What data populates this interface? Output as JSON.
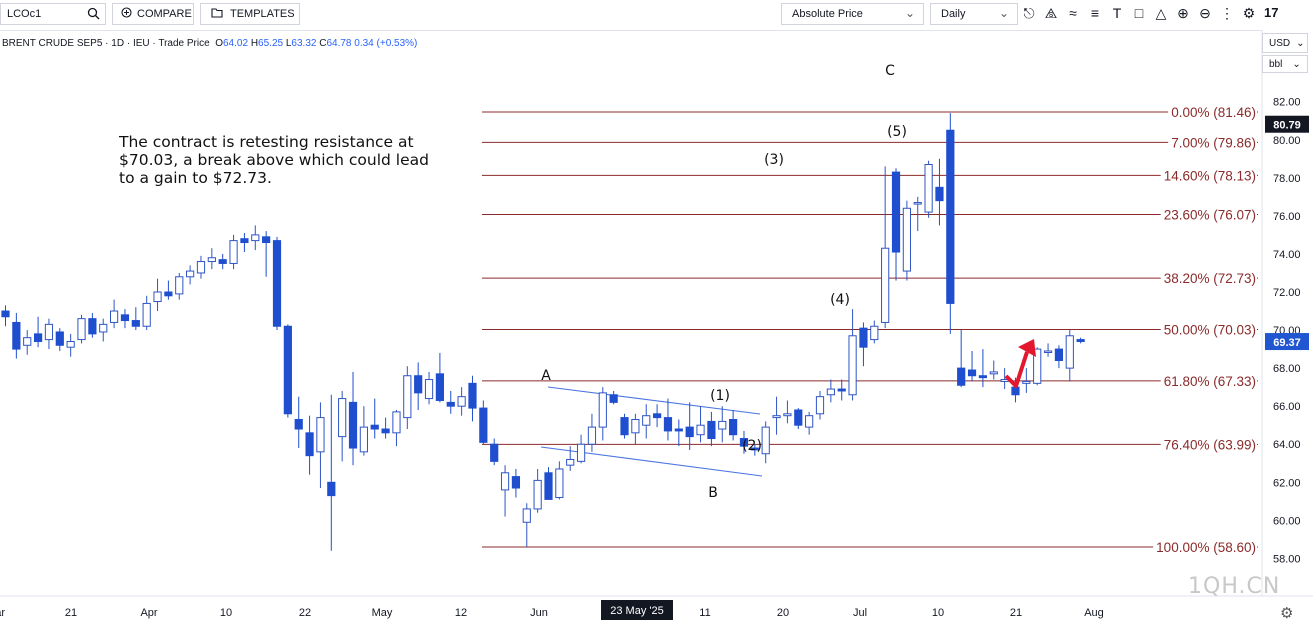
{
  "toolbar": {
    "symbol": "LCOc1",
    "compare_label": "COMPARE",
    "templates_label": "TEMPLATES",
    "price_mode": "Absolute Price",
    "interval": "Daily",
    "tool_icons": [
      "candles-icon",
      "indicators-icon",
      "studies-icon",
      "draw-line-icon",
      "text-icon",
      "zoom-box-icon",
      "shape-icon",
      "zoom-in-icon",
      "zoom-out-icon",
      "more-icon",
      "settings-icon",
      "tv-logo-icon"
    ]
  },
  "legend": {
    "instrument": "BRENT CRUDE SEP5 · 1D · IEU · Trade Price",
    "o_label": "O",
    "open": "64.02",
    "h_label": "H",
    "high": "65.25",
    "l_label": "L",
    "low": "63.32",
    "c_label": "C",
    "close": "64.78",
    "change": "0.34 (+0.53%)"
  },
  "currency": "USD",
  "unit": "bbl",
  "annotation": "The contract is retesting resistance at $70.03, a break above which could lead to a gain to $72.73.",
  "watermark": "1QH.CN",
  "colors": {
    "up_fill": "#ffffff",
    "up_border": "#2f55c4",
    "down": "#1f4fcf",
    "fib": "#8b2a2a",
    "trend": "#4a74e0",
    "arrow": "#e3172e",
    "badge_dark": "#131722",
    "badge_blue": "#2156d1"
  },
  "chart_data": {
    "type": "candlestick",
    "price_axis": {
      "min": 57.8,
      "max": 83.0,
      "ticks": [
        58,
        60,
        62,
        64,
        66,
        68,
        70,
        72,
        74,
        76,
        78,
        80,
        82
      ]
    },
    "price_labels": {
      "top": "80.79",
      "last": "69.37"
    },
    "time_axis": {
      "labels": [
        "Mar",
        "21",
        "Apr",
        "10",
        "22",
        "May",
        "12",
        "Jun",
        "11",
        "20",
        "Jul",
        "10",
        "21",
        "Aug"
      ],
      "crosshair_label": "23 May '25"
    },
    "fibonacci": [
      {
        "ratio": "0.00%",
        "price": 81.46
      },
      {
        "ratio": "7.00%",
        "price": 79.86
      },
      {
        "ratio": "14.60%",
        "price": 78.13
      },
      {
        "ratio": "23.60%",
        "price": 76.07
      },
      {
        "ratio": "38.20%",
        "price": 72.73
      },
      {
        "ratio": "50.00%",
        "price": 70.03
      },
      {
        "ratio": "61.80%",
        "price": 67.33
      },
      {
        "ratio": "76.40%",
        "price": 63.99
      },
      {
        "ratio": "100.00%",
        "price": 58.6
      }
    ],
    "wave_labels": [
      "A",
      "B",
      "C",
      "(1)",
      "(2)",
      "(3)",
      "(4)",
      "(5)"
    ],
    "candles": [
      {
        "o": 71.0,
        "h": 71.3,
        "l": 70.2,
        "c": 70.7
      },
      {
        "o": 70.4,
        "h": 70.9,
        "l": 68.5,
        "c": 69.0
      },
      {
        "o": 69.2,
        "h": 70.0,
        "l": 68.7,
        "c": 69.6
      },
      {
        "o": 69.8,
        "h": 70.7,
        "l": 69.1,
        "c": 69.4
      },
      {
        "o": 69.5,
        "h": 70.6,
        "l": 69.0,
        "c": 70.3
      },
      {
        "o": 69.9,
        "h": 70.1,
        "l": 68.9,
        "c": 69.2
      },
      {
        "o": 69.1,
        "h": 69.8,
        "l": 68.6,
        "c": 69.4
      },
      {
        "o": 69.5,
        "h": 70.8,
        "l": 69.3,
        "c": 70.6
      },
      {
        "o": 70.6,
        "h": 70.9,
        "l": 69.6,
        "c": 69.8
      },
      {
        "o": 69.9,
        "h": 70.6,
        "l": 69.4,
        "c": 70.3
      },
      {
        "o": 70.4,
        "h": 71.6,
        "l": 70.1,
        "c": 71.0
      },
      {
        "o": 70.8,
        "h": 71.1,
        "l": 70.1,
        "c": 70.5
      },
      {
        "o": 70.5,
        "h": 71.2,
        "l": 70.0,
        "c": 70.2
      },
      {
        "o": 70.2,
        "h": 71.8,
        "l": 70.0,
        "c": 71.4
      },
      {
        "o": 71.5,
        "h": 72.7,
        "l": 71.0,
        "c": 72.0
      },
      {
        "o": 72.0,
        "h": 72.6,
        "l": 71.6,
        "c": 71.8
      },
      {
        "o": 71.9,
        "h": 73.0,
        "l": 71.6,
        "c": 72.8
      },
      {
        "o": 72.8,
        "h": 73.4,
        "l": 72.4,
        "c": 73.1
      },
      {
        "o": 73.0,
        "h": 73.9,
        "l": 72.7,
        "c": 73.6
      },
      {
        "o": 73.6,
        "h": 74.3,
        "l": 73.2,
        "c": 73.8
      },
      {
        "o": 73.7,
        "h": 74.0,
        "l": 73.2,
        "c": 73.5
      },
      {
        "o": 73.5,
        "h": 75.0,
        "l": 73.2,
        "c": 74.7
      },
      {
        "o": 74.8,
        "h": 75.1,
        "l": 74.1,
        "c": 74.6
      },
      {
        "o": 74.7,
        "h": 75.5,
        "l": 74.2,
        "c": 75.0
      },
      {
        "o": 74.9,
        "h": 75.2,
        "l": 72.8,
        "c": 74.6
      },
      {
        "o": 74.7,
        "h": 74.9,
        "l": 70.0,
        "c": 70.2
      },
      {
        "o": 70.2,
        "h": 70.3,
        "l": 65.4,
        "c": 65.6
      },
      {
        "o": 65.3,
        "h": 66.5,
        "l": 63.8,
        "c": 64.8
      },
      {
        "o": 64.6,
        "h": 65.5,
        "l": 62.4,
        "c": 63.4
      },
      {
        "o": 63.6,
        "h": 66.2,
        "l": 61.7,
        "c": 65.4
      },
      {
        "o": 62.0,
        "h": 66.6,
        "l": 58.4,
        "c": 61.3
      },
      {
        "o": 64.4,
        "h": 66.8,
        "l": 63.1,
        "c": 66.4
      },
      {
        "o": 66.2,
        "h": 67.8,
        "l": 62.9,
        "c": 63.8
      },
      {
        "o": 63.6,
        "h": 66.0,
        "l": 63.4,
        "c": 64.9
      },
      {
        "o": 65.0,
        "h": 66.4,
        "l": 64.3,
        "c": 64.8
      },
      {
        "o": 64.8,
        "h": 65.4,
        "l": 64.3,
        "c": 64.6
      },
      {
        "o": 64.6,
        "h": 65.8,
        "l": 63.9,
        "c": 65.7
      },
      {
        "o": 65.4,
        "h": 68.1,
        "l": 64.8,
        "c": 67.6
      },
      {
        "o": 67.6,
        "h": 68.3,
        "l": 65.8,
        "c": 66.7
      },
      {
        "o": 66.4,
        "h": 67.8,
        "l": 66.1,
        "c": 67.4
      },
      {
        "o": 67.7,
        "h": 68.8,
        "l": 66.2,
        "c": 66.3
      },
      {
        "o": 66.2,
        "h": 66.8,
        "l": 65.6,
        "c": 66.0
      },
      {
        "o": 66.0,
        "h": 67.0,
        "l": 65.5,
        "c": 66.5
      },
      {
        "o": 67.2,
        "h": 67.6,
        "l": 65.2,
        "c": 65.9
      },
      {
        "o": 65.9,
        "h": 66.3,
        "l": 64.0,
        "c": 64.1
      },
      {
        "o": 64.0,
        "h": 64.3,
        "l": 62.9,
        "c": 63.1
      },
      {
        "o": 61.6,
        "h": 62.9,
        "l": 60.2,
        "c": 62.5
      },
      {
        "o": 62.3,
        "h": 62.7,
        "l": 61.2,
        "c": 61.7
      },
      {
        "o": 59.9,
        "h": 60.9,
        "l": 58.6,
        "c": 60.6
      },
      {
        "o": 60.6,
        "h": 62.7,
        "l": 60.4,
        "c": 62.1
      },
      {
        "o": 62.5,
        "h": 62.8,
        "l": 61.1,
        "c": 61.1
      },
      {
        "o": 61.2,
        "h": 63.1,
        "l": 61.1,
        "c": 62.7
      },
      {
        "o": 62.9,
        "h": 63.9,
        "l": 62.6,
        "c": 63.2
      },
      {
        "o": 63.1,
        "h": 64.5,
        "l": 63.0,
        "c": 64.0
      },
      {
        "o": 64.0,
        "h": 65.6,
        "l": 63.6,
        "c": 64.9
      },
      {
        "o": 64.9,
        "h": 67.0,
        "l": 64.2,
        "c": 66.7
      },
      {
        "o": 66.6,
        "h": 66.8,
        "l": 66.1,
        "c": 66.2
      },
      {
        "o": 65.4,
        "h": 65.6,
        "l": 64.3,
        "c": 64.5
      },
      {
        "o": 64.6,
        "h": 65.6,
        "l": 64.0,
        "c": 65.3
      },
      {
        "o": 65.0,
        "h": 66.1,
        "l": 64.3,
        "c": 65.5
      },
      {
        "o": 65.6,
        "h": 66.1,
        "l": 64.9,
        "c": 65.4
      },
      {
        "o": 65.4,
        "h": 66.4,
        "l": 64.2,
        "c": 64.7
      },
      {
        "o": 64.8,
        "h": 65.3,
        "l": 63.9,
        "c": 64.7
      },
      {
        "o": 64.9,
        "h": 66.2,
        "l": 63.7,
        "c": 64.4
      },
      {
        "o": 64.5,
        "h": 66.0,
        "l": 64.1,
        "c": 65.0
      },
      {
        "o": 65.2,
        "h": 65.7,
        "l": 63.9,
        "c": 64.3
      },
      {
        "o": 64.8,
        "h": 66.0,
        "l": 64.1,
        "c": 65.2
      },
      {
        "o": 65.3,
        "h": 65.8,
        "l": 64.2,
        "c": 64.5
      },
      {
        "o": 64.3,
        "h": 64.7,
        "l": 63.5,
        "c": 63.9
      },
      {
        "o": 63.8,
        "h": 64.0,
        "l": 63.4,
        "c": 63.7
      },
      {
        "o": 63.5,
        "h": 65.2,
        "l": 63.0,
        "c": 64.9
      },
      {
        "o": 65.4,
        "h": 66.5,
        "l": 64.5,
        "c": 65.5
      },
      {
        "o": 65.5,
        "h": 66.3,
        "l": 65.1,
        "c": 65.6
      },
      {
        "o": 65.8,
        "h": 65.9,
        "l": 64.8,
        "c": 65.0
      },
      {
        "o": 64.9,
        "h": 65.7,
        "l": 64.5,
        "c": 65.5
      },
      {
        "o": 65.6,
        "h": 66.8,
        "l": 65.3,
        "c": 66.5
      },
      {
        "o": 66.6,
        "h": 67.4,
        "l": 66.2,
        "c": 66.9
      },
      {
        "o": 66.9,
        "h": 67.4,
        "l": 66.3,
        "c": 66.8
      },
      {
        "o": 66.6,
        "h": 71.1,
        "l": 66.3,
        "c": 69.7
      },
      {
        "o": 70.1,
        "h": 70.4,
        "l": 68.1,
        "c": 69.1
      },
      {
        "o": 69.5,
        "h": 70.5,
        "l": 69.3,
        "c": 70.2
      },
      {
        "o": 70.4,
        "h": 78.6,
        "l": 70.1,
        "c": 74.3
      },
      {
        "o": 78.3,
        "h": 78.5,
        "l": 72.6,
        "c": 74.1
      },
      {
        "o": 73.1,
        "h": 76.8,
        "l": 72.6,
        "c": 76.4
      },
      {
        "o": 76.7,
        "h": 77.0,
        "l": 75.2,
        "c": 76.7
      },
      {
        "o": 76.2,
        "h": 78.9,
        "l": 75.9,
        "c": 78.7
      },
      {
        "o": 77.5,
        "h": 79.0,
        "l": 75.5,
        "c": 76.8
      },
      {
        "o": 80.5,
        "h": 81.4,
        "l": 69.8,
        "c": 71.4
      },
      {
        "o": 68.0,
        "h": 70.0,
        "l": 67.0,
        "c": 67.1
      },
      {
        "o": 67.9,
        "h": 68.9,
        "l": 67.3,
        "c": 67.6
      },
      {
        "o": 67.6,
        "h": 69.0,
        "l": 67.0,
        "c": 67.5
      },
      {
        "o": 67.7,
        "h": 68.4,
        "l": 67.4,
        "c": 67.8
      },
      {
        "o": 67.3,
        "h": 68.0,
        "l": 66.9,
        "c": 67.4
      },
      {
        "o": 67.0,
        "h": 67.5,
        "l": 66.2,
        "c": 66.6
      },
      {
        "o": 67.2,
        "h": 68.0,
        "l": 66.7,
        "c": 67.3
      },
      {
        "o": 67.2,
        "h": 69.1,
        "l": 67.1,
        "c": 69.0
      },
      {
        "o": 68.9,
        "h": 69.3,
        "l": 68.6,
        "c": 68.9
      },
      {
        "o": 69.0,
        "h": 69.2,
        "l": 68.0,
        "c": 68.4
      },
      {
        "o": 68.0,
        "h": 70.0,
        "l": 67.3,
        "c": 69.7
      },
      {
        "o": 69.5,
        "h": 69.6,
        "l": 69.3,
        "c": 69.4
      }
    ]
  }
}
